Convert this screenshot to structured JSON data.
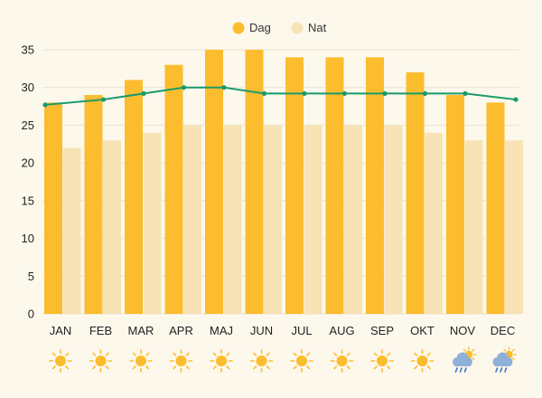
{
  "chart_data": {
    "type": "bar",
    "categories": [
      "JAN",
      "FEB",
      "MAR",
      "APR",
      "MAJ",
      "JUN",
      "JUL",
      "AUG",
      "SEP",
      "OKT",
      "NOV",
      "DEC"
    ],
    "series": [
      {
        "name": "Dag",
        "values": [
          28,
          29,
          31,
          33,
          35,
          35,
          34,
          34,
          34,
          32,
          29,
          28
        ],
        "color": "#fbbd2e"
      },
      {
        "name": "Nat",
        "values": [
          22,
          23,
          24,
          25,
          25,
          25,
          25,
          25,
          25,
          24,
          23,
          23
        ],
        "color": "#f8e3b6"
      }
    ],
    "line": {
      "name": "",
      "values": [
        27.7,
        28.4,
        29.2,
        30,
        30,
        29.2,
        29.2,
        29.2,
        29.2,
        29.2,
        29.2,
        28.4
      ],
      "color": "#1a9a6c"
    },
    "ylim": [
      0,
      35
    ],
    "yticks": [
      0,
      5,
      10,
      15,
      20,
      25,
      30,
      35
    ],
    "gridlines": true,
    "legend_position": "top-center",
    "weather_icons": [
      "sun-icon",
      "sun-icon",
      "sun-icon",
      "sun-icon",
      "sun-icon",
      "sun-icon",
      "sun-icon",
      "sun-icon",
      "sun-icon",
      "sun-icon",
      "rain-cloud-icon",
      "rain-cloud-icon"
    ],
    "colors": {
      "grid": "#e9e2d3",
      "sun": "#fbbd2e",
      "cloud": "#8fb1d8",
      "rain": "#3d74c4"
    }
  }
}
